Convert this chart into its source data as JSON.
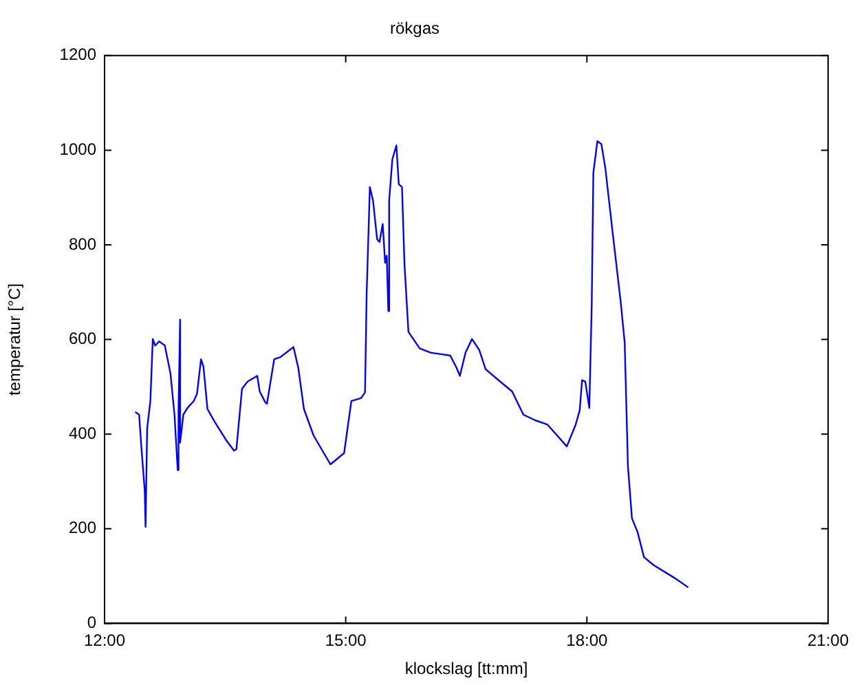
{
  "chart_data": {
    "type": "line",
    "title": "rökgas",
    "xlabel": "klockslag [tt:mm]",
    "ylabel": "temperatur [°C]",
    "xlim": [
      12,
      21
    ],
    "xticks": [
      {
        "value": 12,
        "label": "12:00"
      },
      {
        "value": 15,
        "label": "15:00"
      },
      {
        "value": 18,
        "label": "18:00"
      },
      {
        "value": 21,
        "label": "21:00"
      }
    ],
    "ylim": [
      0,
      1200
    ],
    "yticks": [
      0,
      200,
      400,
      600,
      800,
      1000,
      1200
    ],
    "grid": false,
    "legend": false,
    "marker": "none",
    "line_style": "solid",
    "series": [
      {
        "color": "#0000ff",
        "x": [
          12.38,
          12.43,
          12.46,
          12.5,
          12.51,
          12.53,
          12.57,
          12.6,
          12.63,
          12.68,
          12.75,
          12.82,
          12.87,
          12.91,
          12.92,
          12.94,
          12.94,
          12.98,
          13.03,
          13.11,
          13.15,
          13.2,
          13.23,
          13.28,
          13.37,
          13.51,
          13.61,
          13.64,
          13.71,
          13.78,
          13.9,
          13.93,
          14,
          14.02,
          14.11,
          14.19,
          14.35,
          14.41,
          14.48,
          14.6,
          14.81,
          14.98,
          15.07,
          15.19,
          15.24,
          15.26,
          15.3,
          15.34,
          15.39,
          15.42,
          15.46,
          15.49,
          15.51,
          15.53,
          15.54,
          15.58,
          15.63,
          15.66,
          15.7,
          15.73,
          15.78,
          15.84,
          15.92,
          16.06,
          16.18,
          16.3,
          16.37,
          16.42,
          16.49,
          16.57,
          16.66,
          16.74,
          16.9,
          17.07,
          17.21,
          17.36,
          17.51,
          17.63,
          17.75,
          17.86,
          17.91,
          17.94,
          17.98,
          18.03,
          18.06,
          18.08,
          18.13,
          18.18,
          18.23,
          18.32,
          18.42,
          18.47,
          18.51,
          18.56,
          18.63,
          18.71,
          18.83,
          19.09,
          19.26
        ],
        "values": [
          447,
          441,
          368,
          280,
          204,
          412,
          470,
          601,
          587,
          596,
          587,
          528,
          441,
          324,
          450,
          642,
          382,
          441,
          455,
          470,
          485,
          558,
          543,
          453,
          426,
          388,
          365,
          368,
          496,
          511,
          523,
          490,
          467,
          464,
          558,
          563,
          584,
          540,
          453,
          397,
          336,
          360,
          470,
          476,
          488,
          695,
          922,
          893,
          812,
          806,
          844,
          762,
          777,
          660,
          893,
          981,
          1010,
          928,
          922,
          762,
          616,
          601,
          581,
          572,
          569,
          566,
          543,
          523,
          572,
          601,
          578,
          537,
          514,
          490,
          441,
          429,
          420,
          397,
          374,
          420,
          450,
          514,
          511,
          455,
          674,
          952,
          1019,
          1013,
          961,
          826,
          680,
          593,
          333,
          222,
          193,
          140,
          123,
          96,
          76
        ]
      }
    ]
  }
}
